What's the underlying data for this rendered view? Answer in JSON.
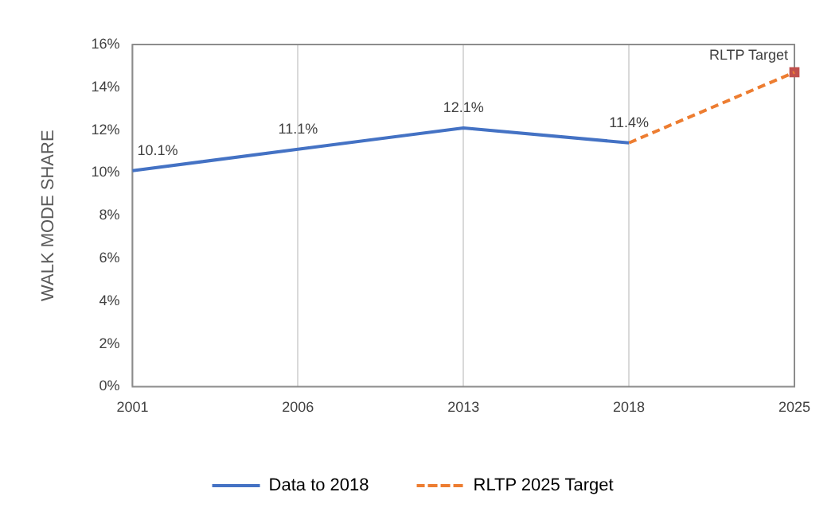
{
  "chart_data": {
    "type": "line",
    "ylabel": "WALK MODE SHARE",
    "categories": [
      "2001",
      "2006",
      "2013",
      "2018",
      "2025"
    ],
    "series": [
      {
        "name": "Data to 2018",
        "color": "#4472c4",
        "values": [
          10.1,
          11.1,
          12.1,
          11.4,
          null
        ],
        "value_labels": [
          "10.1%",
          "11.1%",
          "12.1%",
          "11.4%",
          null
        ],
        "line_style": "solid",
        "marker": "none"
      },
      {
        "name": "RLTP 2025 Target",
        "color": "#ed7d31",
        "values": [
          null,
          null,
          null,
          11.4,
          14.7
        ],
        "line_style": "dashed",
        "marker": "none"
      },
      {
        "type": "scatter",
        "color": "#c0504d",
        "values": [
          null,
          null,
          null,
          null,
          14.7
        ],
        "marker": "square"
      }
    ],
    "annotations": [
      {
        "text": "RLTP Target",
        "x": "2025",
        "y": 14.7
      }
    ],
    "ylim": [
      0,
      16
    ],
    "yticks": [
      {
        "value": 0,
        "label": "0%"
      },
      {
        "value": 2,
        "label": "2%"
      },
      {
        "value": 4,
        "label": "4%"
      },
      {
        "value": 6,
        "label": "6%"
      },
      {
        "value": 8,
        "label": "8%"
      },
      {
        "value": 10,
        "label": "10%"
      },
      {
        "value": 12,
        "label": "12%"
      },
      {
        "value": 14,
        "label": "14%"
      },
      {
        "value": 16,
        "label": "16%"
      }
    ],
    "grid": "x",
    "legend": "bottom"
  }
}
